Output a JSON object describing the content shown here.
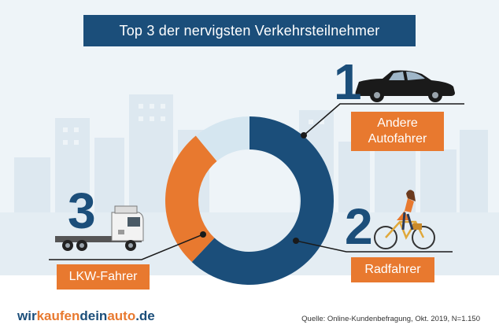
{
  "title": "Top 3 der nervigsten Verkehrsteilnehmer",
  "chart_data": {
    "type": "pie",
    "variant": "donut",
    "title": "Top 3 der nervigsten Verkehrsteilnehmer",
    "categories": [
      "Andere Autofahrer",
      "Radfahrer",
      "LKW-Fahrer"
    ],
    "ranks": [
      "1",
      "2",
      "3"
    ],
    "values": [
      62,
      27,
      11
    ],
    "colors": [
      "#1b4e7a",
      "#e8792f",
      "#d5e6f0"
    ]
  },
  "labels": {
    "rank1": "1",
    "rank2": "2",
    "rank3": "3",
    "cat1_line1": "Andere",
    "cat1_line2": "Autofahrer",
    "cat2": "Radfahrer",
    "cat3": "LKW-Fahrer"
  },
  "logo": {
    "part1": "wir",
    "part2": "kaufen",
    "part3": "dein",
    "part4": "auto",
    "part5": ".de"
  },
  "source": "Quelle: Online-Kundenbefragung, Okt. 2019, N=1.150",
  "colors": {
    "navy": "#1b4e7a",
    "orange": "#e8792f",
    "light": "#d5e6f0"
  },
  "icons": [
    "car-icon",
    "truck-icon",
    "cyclist-icon"
  ]
}
